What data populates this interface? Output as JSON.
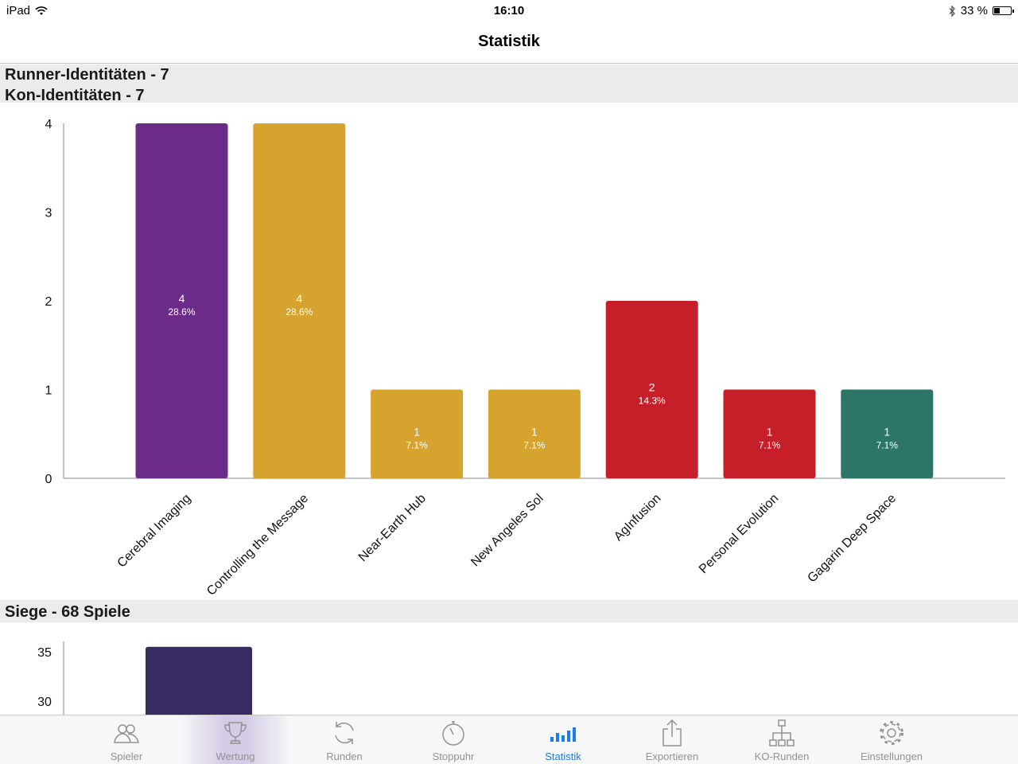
{
  "status_bar": {
    "device": "iPad",
    "time": "16:10",
    "battery_text": "33 %",
    "battery_level": 0.33
  },
  "nav": {
    "title": "Statistik"
  },
  "sections": {
    "runner_header": "Runner-Identitäten - 7",
    "corp_header": "Kon-Identitäten - 7",
    "wins_header": "Siege - 68 Spiele"
  },
  "chart_data": [
    {
      "type": "bar",
      "title": "",
      "xlabel": "",
      "ylabel": "",
      "ylim": [
        0,
        4
      ],
      "yticks": [
        "0",
        "1",
        "2",
        "3",
        "4"
      ],
      "grid": false,
      "categories": [
        "Cerebral Imaging",
        "Controlling the Message",
        "Near-Earth Hub",
        "New Angeles Sol",
        "AgInfusion",
        "Personal Evolution",
        "Gagarin Deep Space"
      ],
      "values": [
        4,
        4,
        1,
        1,
        2,
        1,
        1
      ],
      "percent_labels": [
        "28.6%",
        "28.6%",
        "7.1%",
        "7.1%",
        "14.3%",
        "7.1%",
        "7.1%"
      ],
      "value_labels": [
        "4",
        "4",
        "1",
        "1",
        "2",
        "1",
        "1"
      ],
      "colors": [
        "#6a2c88",
        "#d7a32f",
        "#d7a32f",
        "#d7a32f",
        "#c61f2a",
        "#c61f2a",
        "#2d7667"
      ]
    },
    {
      "type": "bar",
      "title": "",
      "xlabel": "",
      "ylabel": "",
      "visible_yticks": [
        "35",
        "30"
      ],
      "visible_yrange": [
        28,
        36
      ],
      "grid": false,
      "categories": [
        ""
      ],
      "values": [
        35.5
      ],
      "colors": [
        "#382b63"
      ]
    }
  ],
  "tab_bar": {
    "items": [
      {
        "label": "Spieler",
        "icon": "players-icon",
        "active": false,
        "highlighted": false
      },
      {
        "label": "Wertung",
        "icon": "trophy-icon",
        "active": false,
        "highlighted": true
      },
      {
        "label": "Runden",
        "icon": "refresh-icon",
        "active": false,
        "highlighted": false
      },
      {
        "label": "Stoppuhr",
        "icon": "stopwatch-icon",
        "active": false,
        "highlighted": false
      },
      {
        "label": "Statistik",
        "icon": "bar-chart-icon",
        "active": true,
        "highlighted": false
      },
      {
        "label": "Exportieren",
        "icon": "share-icon",
        "active": false,
        "highlighted": false
      },
      {
        "label": "KO-Runden",
        "icon": "bracket-icon",
        "active": false,
        "highlighted": false
      },
      {
        "label": "Einstellungen",
        "icon": "gear-icon",
        "active": false,
        "highlighted": false
      }
    ],
    "active_color": "#1a7cf0",
    "inactive_color": "#929292"
  }
}
